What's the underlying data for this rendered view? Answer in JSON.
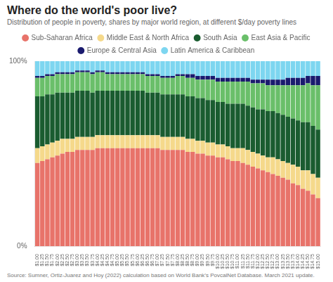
{
  "chart_data": {
    "type": "bar",
    "title": "Where do the world's poor live?",
    "subtitle": "Distribution of people in poverty, shares by major world region, at different $/day poverty lines",
    "source": "Source: Sumner, Ortiz-Juarez and Hoy (2022) calculation based on World Bank’s PovcalNet Database. March 2021 update.",
    "stacked": true,
    "grid": false,
    "legend": "top",
    "categories": [
      "$1.00",
      "$1.25",
      "$1.50",
      "$1.75",
      "$2.00",
      "$2.25",
      "$2.50",
      "$2.75",
      "$3.00",
      "$3.25",
      "$3.50",
      "$3.75",
      "$4.00",
      "$4.25",
      "$4.50",
      "$4.75",
      "$5.00",
      "$5.25",
      "$5.50",
      "$5.75",
      "$6.00",
      "$6.25",
      "$6.50",
      "$6.75",
      "$7.00",
      "$7.25",
      "$7.50",
      "$7.75",
      "$8.00",
      "$8.25",
      "$8.50",
      "$8.75",
      "$9.00",
      "$9.25",
      "$9.50",
      "$9.75",
      "$10.00",
      "$10.25",
      "$10.50",
      "$10.75",
      "$11.00",
      "$11.25",
      "$11.50",
      "$11.75",
      "$12.00",
      "$12.25",
      "$12.50",
      "$12.75",
      "$13.00",
      "$13.25",
      "$13.50",
      "$13.75",
      "$14.00",
      "$14.25",
      "$14.50",
      "$14.75",
      "$15.00"
    ],
    "ylim": [
      0,
      1
    ],
    "yticks": [
      {
        "value": 0,
        "label": "0%"
      },
      {
        "value": 1,
        "label": "100%"
      }
    ],
    "series": [
      {
        "name": "Sub-Saharan Africa",
        "color": "#e8736a",
        "values": [
          0.45,
          0.46,
          0.47,
          0.48,
          0.49,
          0.5,
          0.51,
          0.51,
          0.52,
          0.52,
          0.52,
          0.52,
          0.53,
          0.53,
          0.53,
          0.53,
          0.53,
          0.53,
          0.53,
          0.53,
          0.53,
          0.53,
          0.53,
          0.53,
          0.53,
          0.52,
          0.52,
          0.52,
          0.52,
          0.52,
          0.51,
          0.51,
          0.5,
          0.5,
          0.49,
          0.49,
          0.48,
          0.48,
          0.47,
          0.46,
          0.46,
          0.45,
          0.44,
          0.43,
          0.42,
          0.41,
          0.4,
          0.39,
          0.38,
          0.37,
          0.36,
          0.34,
          0.33,
          0.31,
          0.3,
          0.28,
          0.26
        ]
      },
      {
        "name": "Middle East & North Africa",
        "color": "#f5d98b",
        "values": [
          0.08,
          0.08,
          0.08,
          0.08,
          0.08,
          0.08,
          0.07,
          0.07,
          0.07,
          0.07,
          0.07,
          0.07,
          0.07,
          0.07,
          0.07,
          0.07,
          0.07,
          0.07,
          0.07,
          0.07,
          0.07,
          0.07,
          0.07,
          0.07,
          0.07,
          0.07,
          0.07,
          0.07,
          0.07,
          0.07,
          0.07,
          0.07,
          0.07,
          0.07,
          0.07,
          0.07,
          0.07,
          0.07,
          0.07,
          0.07,
          0.07,
          0.08,
          0.08,
          0.08,
          0.08,
          0.08,
          0.08,
          0.09,
          0.09,
          0.09,
          0.09,
          0.1,
          0.1,
          0.1,
          0.11,
          0.11,
          0.11
        ]
      },
      {
        "name": "South Asia",
        "color": "#1a5c30",
        "values": [
          0.28,
          0.27,
          0.27,
          0.26,
          0.26,
          0.25,
          0.25,
          0.25,
          0.25,
          0.25,
          0.25,
          0.24,
          0.24,
          0.24,
          0.24,
          0.24,
          0.24,
          0.24,
          0.24,
          0.24,
          0.24,
          0.24,
          0.23,
          0.23,
          0.23,
          0.23,
          0.23,
          0.23,
          0.23,
          0.23,
          0.23,
          0.23,
          0.23,
          0.23,
          0.23,
          0.23,
          0.23,
          0.23,
          0.23,
          0.24,
          0.24,
          0.24,
          0.24,
          0.24,
          0.24,
          0.25,
          0.25,
          0.25,
          0.25,
          0.25,
          0.25,
          0.25,
          0.25,
          0.26,
          0.26,
          0.26,
          0.26
        ]
      },
      {
        "name": "East Asia & Pacific",
        "color": "#6abf6a",
        "values": [
          0.1,
          0.1,
          0.1,
          0.1,
          0.1,
          0.1,
          0.1,
          0.1,
          0.1,
          0.1,
          0.1,
          0.1,
          0.1,
          0.1,
          0.09,
          0.09,
          0.09,
          0.09,
          0.09,
          0.09,
          0.09,
          0.09,
          0.09,
          0.09,
          0.09,
          0.09,
          0.09,
          0.09,
          0.1,
          0.1,
          0.1,
          0.1,
          0.1,
          0.1,
          0.11,
          0.11,
          0.11,
          0.11,
          0.12,
          0.12,
          0.12,
          0.12,
          0.13,
          0.13,
          0.14,
          0.14,
          0.14,
          0.14,
          0.15,
          0.16,
          0.17,
          0.18,
          0.19,
          0.2,
          0.21,
          0.22,
          0.24
        ]
      },
      {
        "name": "Europe & Central Asia",
        "color": "#1a1a6e",
        "values": [
          0.01,
          0.01,
          0.01,
          0.01,
          0.01,
          0.01,
          0.01,
          0.01,
          0.01,
          0.01,
          0.01,
          0.01,
          0.01,
          0.01,
          0.01,
          0.01,
          0.01,
          0.01,
          0.01,
          0.01,
          0.01,
          0.01,
          0.01,
          0.01,
          0.01,
          0.01,
          0.01,
          0.01,
          0.01,
          0.01,
          0.02,
          0.02,
          0.02,
          0.02,
          0.02,
          0.02,
          0.02,
          0.02,
          0.02,
          0.02,
          0.02,
          0.02,
          0.02,
          0.02,
          0.02,
          0.02,
          0.03,
          0.03,
          0.03,
          0.03,
          0.04,
          0.04,
          0.04,
          0.04,
          0.04,
          0.05,
          0.05
        ]
      },
      {
        "name": "Latin America & Caribbean",
        "color": "#7dd6f0",
        "values": [
          0.08,
          0.08,
          0.07,
          0.07,
          0.06,
          0.06,
          0.06,
          0.06,
          0.05,
          0.05,
          0.05,
          0.06,
          0.05,
          0.05,
          0.06,
          0.06,
          0.06,
          0.06,
          0.06,
          0.06,
          0.06,
          0.06,
          0.07,
          0.07,
          0.07,
          0.08,
          0.08,
          0.08,
          0.07,
          0.07,
          0.07,
          0.07,
          0.08,
          0.08,
          0.08,
          0.08,
          0.09,
          0.09,
          0.09,
          0.09,
          0.09,
          0.09,
          0.09,
          0.1,
          0.1,
          0.1,
          0.1,
          0.1,
          0.1,
          0.1,
          0.09,
          0.09,
          0.09,
          0.09,
          0.08,
          0.08,
          0.08
        ]
      }
    ]
  }
}
